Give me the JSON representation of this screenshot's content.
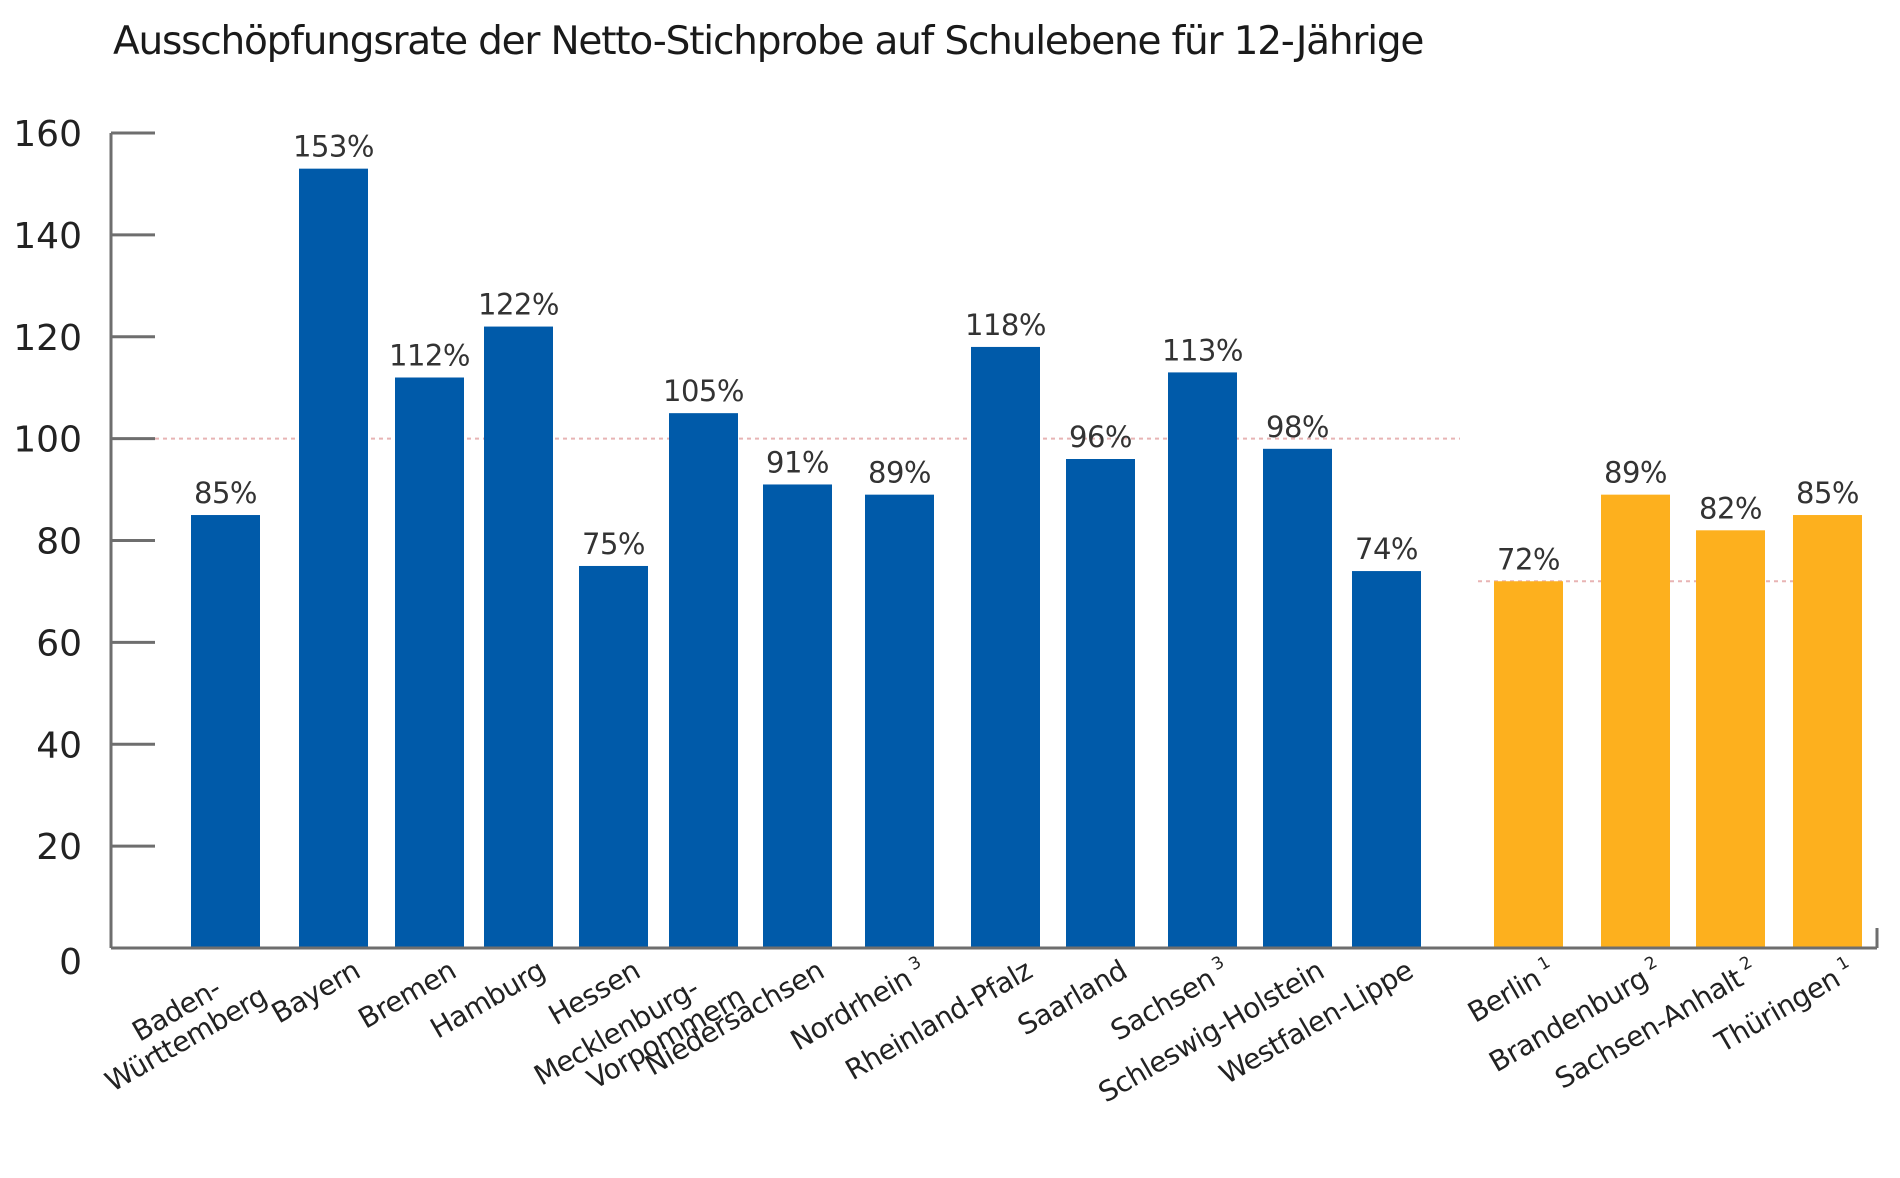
{
  "chart_data": {
    "type": "bar",
    "title": "Ausschöpfungsrate der Netto-Stichprobe auf Schulebene für 12-Jährige",
    "xlabel": "",
    "ylabel": "",
    "ylim": [
      0,
      160
    ],
    "yticks": [
      0,
      20,
      40,
      60,
      80,
      100,
      120,
      140,
      160
    ],
    "grid": false,
    "legend": null,
    "value_suffix": "%",
    "reference_lines": [
      {
        "value": 100,
        "style": "dotted",
        "color": "#e8b4b4",
        "group": "west"
      },
      {
        "value": 72,
        "style": "dotted",
        "color": "#e8b4b4",
        "group": "east"
      }
    ],
    "groups": [
      {
        "name": "west",
        "color": "#005aa9"
      },
      {
        "name": "east",
        "color": "#fdb01e"
      }
    ],
    "categories": [
      {
        "lines": [
          "Baden-",
          "Württemberg"
        ],
        "sup": "",
        "group": "west"
      },
      {
        "lines": [
          "Bayern"
        ],
        "sup": "",
        "group": "west"
      },
      {
        "lines": [
          "Bremen"
        ],
        "sup": "",
        "group": "west"
      },
      {
        "lines": [
          "Hamburg"
        ],
        "sup": "",
        "group": "west"
      },
      {
        "lines": [
          "Hessen"
        ],
        "sup": "",
        "group": "west"
      },
      {
        "lines": [
          "Mecklenburg-",
          "Vorpommern"
        ],
        "sup": "",
        "group": "west"
      },
      {
        "lines": [
          "Niedersachsen"
        ],
        "sup": "",
        "group": "west"
      },
      {
        "lines": [
          "Nordrhein"
        ],
        "sup": "3",
        "group": "west"
      },
      {
        "lines": [
          "Rheinland-Pfalz"
        ],
        "sup": "",
        "group": "west"
      },
      {
        "lines": [
          "Saarland"
        ],
        "sup": "",
        "group": "west"
      },
      {
        "lines": [
          "Sachsen"
        ],
        "sup": "3",
        "group": "west"
      },
      {
        "lines": [
          "Schleswig-Holstein"
        ],
        "sup": "",
        "group": "west"
      },
      {
        "lines": [
          "Westfalen-Lippe"
        ],
        "sup": "",
        "group": "west"
      },
      {
        "lines": [
          "Berlin"
        ],
        "sup": "1",
        "group": "east"
      },
      {
        "lines": [
          "Brandenburg"
        ],
        "sup": "2",
        "group": "east"
      },
      {
        "lines": [
          "Sachsen-Anhalt"
        ],
        "sup": "2",
        "group": "east"
      },
      {
        "lines": [
          "Thüringen"
        ],
        "sup": "1",
        "group": "east"
      }
    ],
    "values": [
      85,
      153,
      112,
      122,
      75,
      105,
      91,
      89,
      118,
      96,
      113,
      98,
      74,
      72,
      89,
      82,
      85
    ],
    "data_labels": [
      "85%",
      "153%",
      "112%",
      "122%",
      "75%",
      "105%",
      "91%",
      "89%",
      "118%",
      "96%",
      "113%",
      "98%",
      "74%",
      "72%",
      "89%",
      "82%",
      "85%"
    ]
  }
}
